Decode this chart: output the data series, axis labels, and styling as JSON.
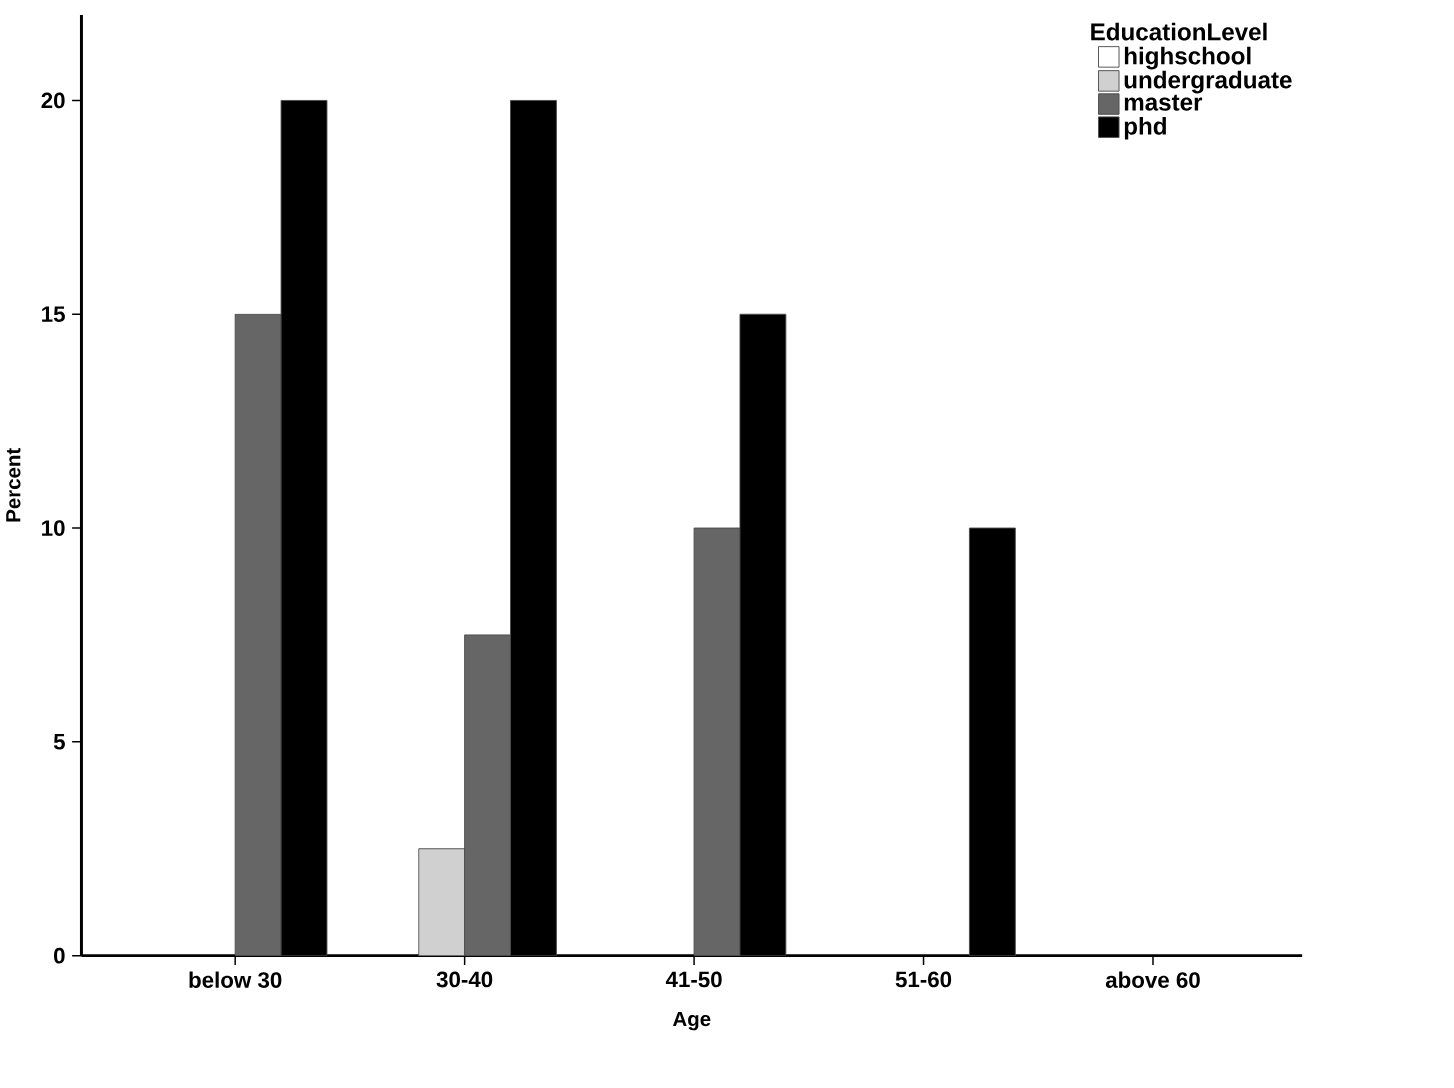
{
  "chart_data": {
    "type": "bar",
    "xlabel": "Age",
    "ylabel": "Percent",
    "legend_title": "EducationLevel",
    "categories": [
      "below 30",
      "30-40",
      "41-50",
      "51-60",
      "above 60"
    ],
    "series": [
      {
        "name": "highschool",
        "color": "#ffffff",
        "values": [
          null,
          null,
          null,
          null,
          null
        ]
      },
      {
        "name": "undergraduate",
        "color": "#d0d0d0",
        "values": [
          null,
          2.5,
          null,
          null,
          null
        ]
      },
      {
        "name": "master",
        "color": "#666666",
        "values": [
          15,
          7.5,
          10,
          null,
          null
        ]
      },
      {
        "name": "phd",
        "color": "#000000",
        "values": [
          20,
          20,
          15,
          10,
          null
        ]
      }
    ],
    "ylim": [
      0,
      22
    ],
    "yticks": [
      0,
      5,
      10,
      15,
      20
    ],
    "grid": false,
    "legend": "top right"
  }
}
